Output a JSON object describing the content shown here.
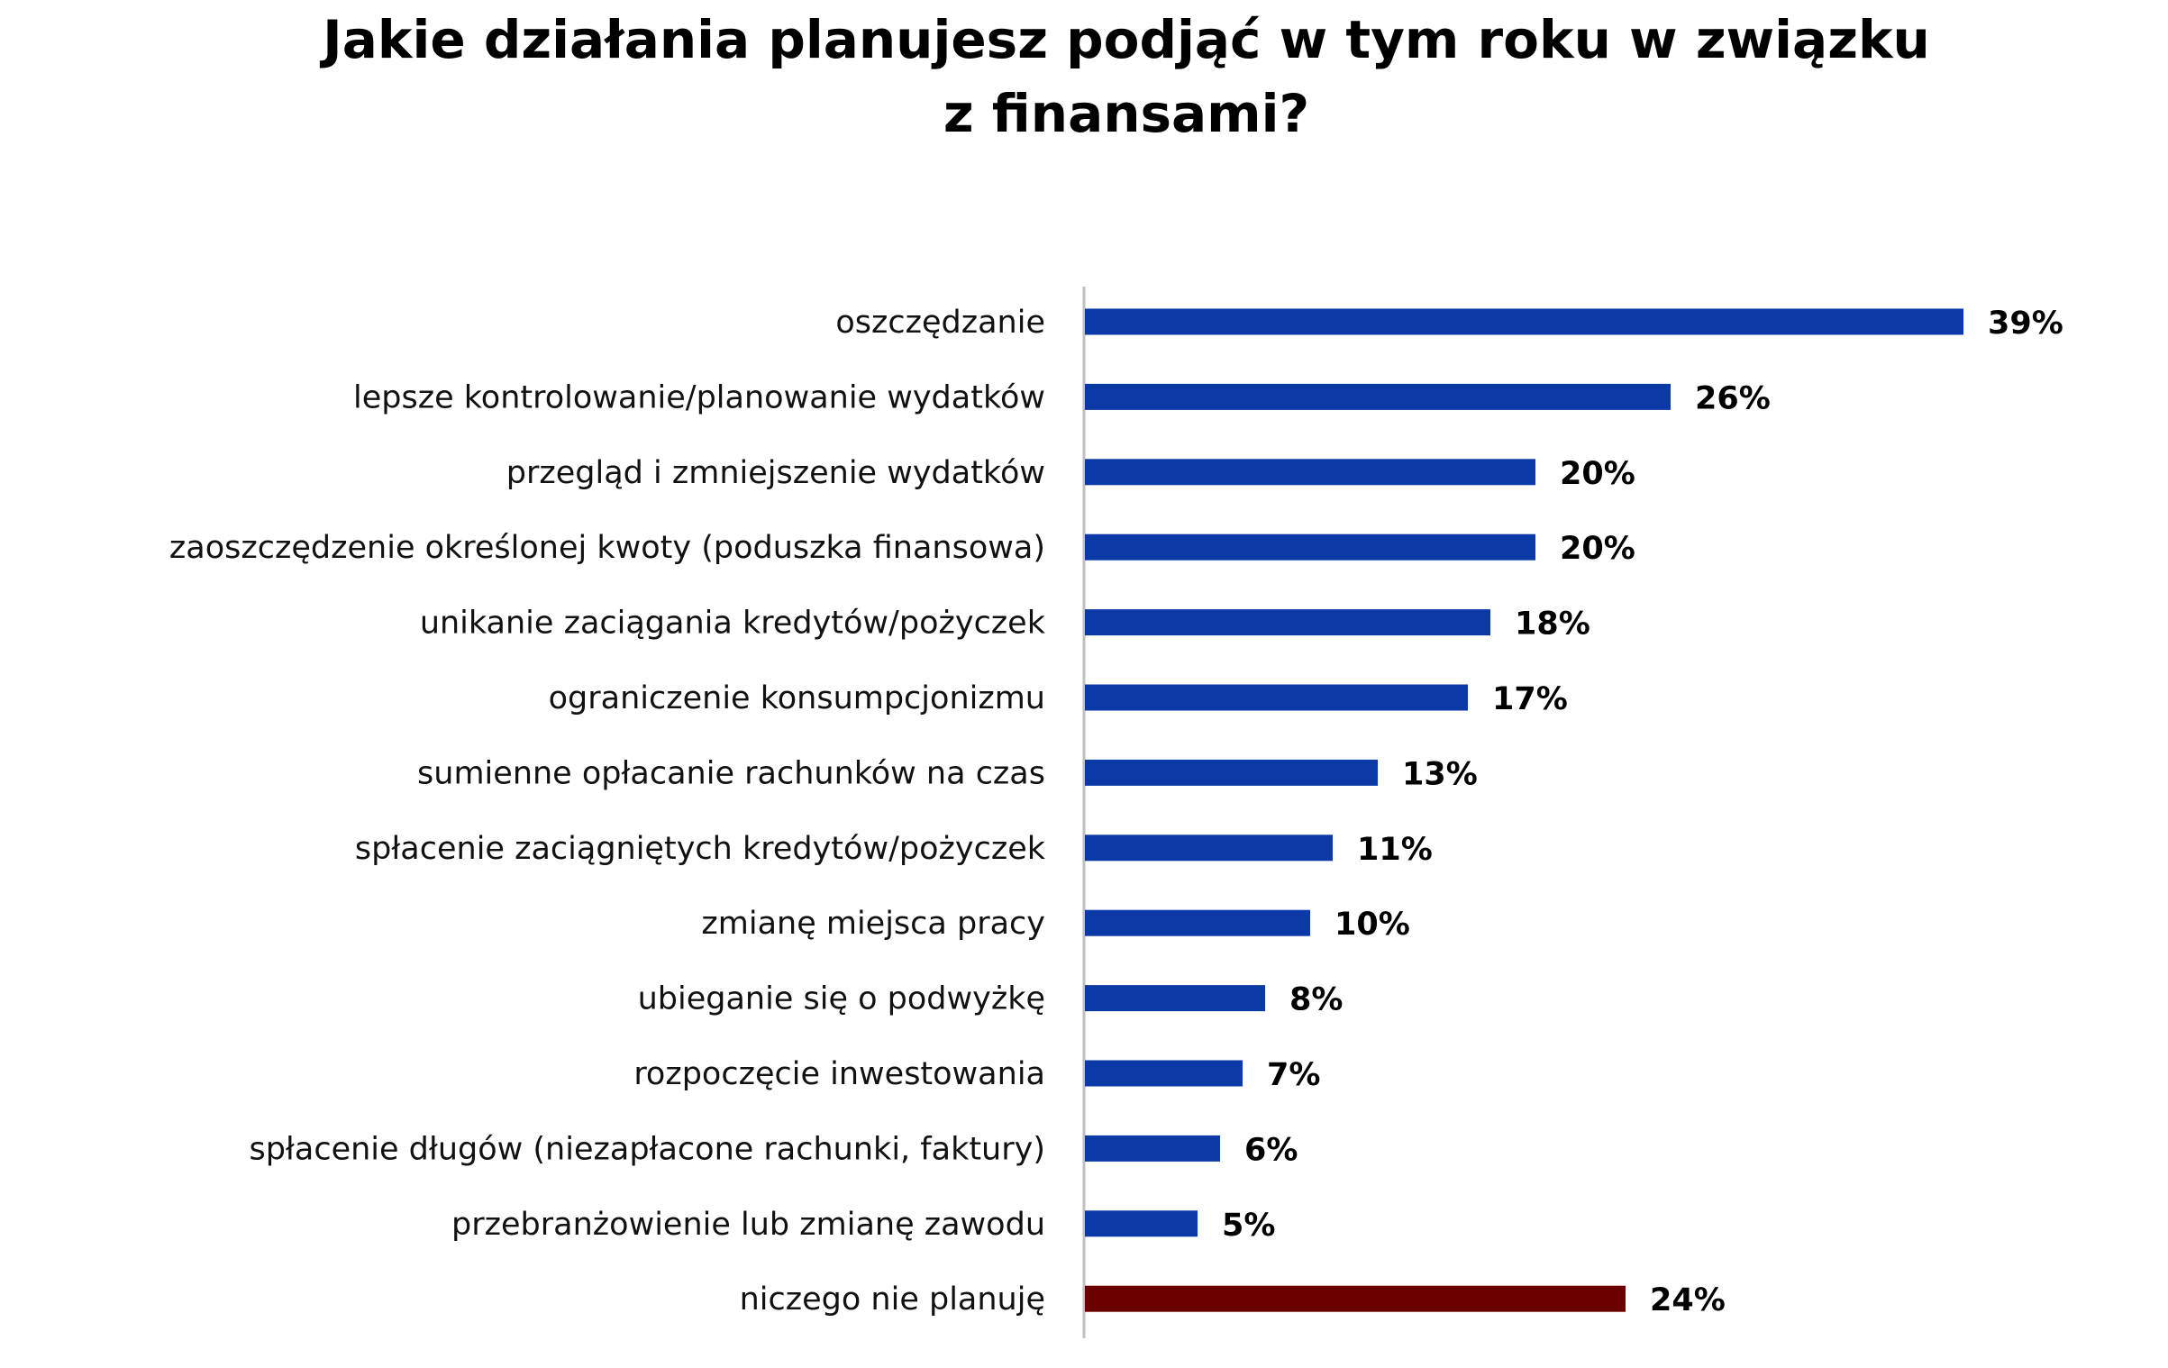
{
  "chart_data": {
    "type": "bar",
    "orientation": "horizontal",
    "title": "Jakie działania planujesz podjąć w tym roku w związku z finansami?",
    "title_lines": [
      "Jakie działania planujesz podjąć w tym roku w związku",
      "z finansami?"
    ],
    "categories": [
      "oszczędzanie",
      "lepsze kontrolowanie/planowanie wydatków",
      "przegląd i zmniejszenie wydatków",
      "zaoszczędzenie określonej kwoty (poduszka finansowa)",
      "unikanie zaciągania kredytów/pożyczek",
      "ograniczenie konsumpcjonizmu",
      "sumienne opłacanie rachunków na czas",
      "spłacenie zaciągniętych kredytów/pożyczek",
      "zmianę miejsca pracy",
      "ubieganie się o podwyżkę",
      "rozpoczęcie inwestowania",
      "spłacenie długów (niezapłacone rachunki, faktury)",
      "przebranżowienie lub zmianę zawodu",
      "niczego nie planuję"
    ],
    "values": [
      39,
      26,
      20,
      20,
      18,
      17,
      13,
      11,
      10,
      8,
      7,
      6,
      5,
      24
    ],
    "value_labels": [
      "39%",
      "26%",
      "20%",
      "20%",
      "18%",
      "17%",
      "13%",
      "11%",
      "10%",
      "8%",
      "7%",
      "6%",
      "5%",
      "24%"
    ],
    "unit": "%",
    "bar_colors": [
      "#0b3aa6",
      "#0b3aa6",
      "#0b3aa6",
      "#0b3aa6",
      "#0b3aa6",
      "#0b3aa6",
      "#0b3aa6",
      "#0b3aa6",
      "#0b3aa6",
      "#0b3aa6",
      "#0b3aa6",
      "#0b3aa6",
      "#0b3aa6",
      "#6b0000"
    ],
    "xlim": [
      0,
      40
    ],
    "xlabel": "",
    "ylabel": "",
    "grid": false,
    "legend": "none"
  }
}
